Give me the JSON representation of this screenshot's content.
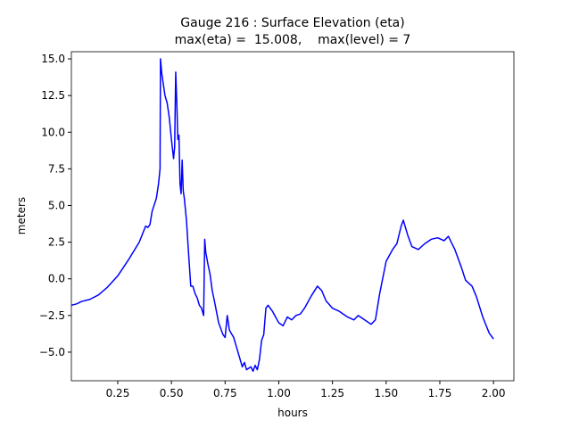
{
  "chart_data": {
    "type": "line",
    "title": "Gauge 216 : Surface Elevation (eta)",
    "subtitle": "max(eta) =  15.008,    max(level) = 7",
    "x_label": "hours",
    "y_label": "meters",
    "x": [
      0.035,
      0.06,
      0.08,
      0.12,
      0.16,
      0.2,
      0.25,
      0.3,
      0.35,
      0.38,
      0.39,
      0.4,
      0.41,
      0.43,
      0.44,
      0.447,
      0.449,
      0.455,
      0.46,
      0.47,
      0.48,
      0.49,
      0.5,
      0.51,
      0.515,
      0.52,
      0.525,
      0.53,
      0.535,
      0.54,
      0.545,
      0.55,
      0.555,
      0.56,
      0.57,
      0.58,
      0.59,
      0.6,
      0.61,
      0.62,
      0.63,
      0.64,
      0.65,
      0.655,
      0.66,
      0.67,
      0.68,
      0.69,
      0.7,
      0.72,
      0.74,
      0.75,
      0.76,
      0.77,
      0.79,
      0.8,
      0.82,
      0.83,
      0.84,
      0.85,
      0.87,
      0.88,
      0.89,
      0.9,
      0.91,
      0.92,
      0.93,
      0.94,
      0.95,
      0.97,
      1.0,
      1.02,
      1.04,
      1.06,
      1.08,
      1.1,
      1.12,
      1.15,
      1.18,
      1.2,
      1.22,
      1.25,
      1.28,
      1.32,
      1.35,
      1.37,
      1.4,
      1.43,
      1.45,
      1.47,
      1.5,
      1.53,
      1.55,
      1.57,
      1.58,
      1.6,
      1.62,
      1.65,
      1.68,
      1.71,
      1.74,
      1.77,
      1.79,
      1.82,
      1.85,
      1.87,
      1.9,
      1.92,
      1.95,
      1.98,
      2.0
    ],
    "series": [
      {
        "name": "eta",
        "color": "#0000ff",
        "values": [
          -1.8,
          -1.7,
          -1.55,
          -1.4,
          -1.1,
          -0.6,
          0.2,
          1.3,
          2.5,
          3.6,
          3.5,
          3.7,
          4.6,
          5.5,
          6.5,
          7.5,
          15.0,
          14.0,
          13.5,
          12.5,
          12.0,
          11.0,
          9.5,
          8.2,
          9.0,
          14.1,
          12,
          9.5,
          9.8,
          6.5,
          5.8,
          8.1,
          6,
          5.5,
          4,
          1.7,
          -0.5,
          -0.5,
          -1.0,
          -1.3,
          -1.8,
          -2.0,
          -2.5,
          2.7,
          1.8,
          1.0,
          0.3,
          -0.8,
          -1.5,
          -3.0,
          -3.8,
          -4.0,
          -2.5,
          -3.5,
          -4.0,
          -4.5,
          -5.5,
          -6.0,
          -5.7,
          -6.2,
          -6.0,
          -6.3,
          -5.9,
          -6.2,
          -5.5,
          -4.2,
          -3.8,
          -2.0,
          -1.8,
          -2.2,
          -3.0,
          -3.2,
          -2.6,
          -2.8,
          -2.5,
          -2.4,
          -2.0,
          -1.2,
          -0.5,
          -0.8,
          -1.5,
          -2.0,
          -2.2,
          -2.6,
          -2.8,
          -2.5,
          -2.8,
          -3.1,
          -2.8,
          -1.0,
          1.2,
          2.0,
          2.4,
          3.6,
          4.0,
          3.0,
          2.2,
          2.0,
          2.4,
          2.7,
          2.8,
          2.6,
          2.9,
          2.0,
          0.8,
          -0.1,
          -0.5,
          -1.2,
          -2.6,
          -3.7,
          -4.1
        ]
      }
    ],
    "xlim": [
      0.034,
      2.095
    ],
    "ylim": [
      -6.95,
      15.49
    ],
    "xticks": [
      0.25,
      {
        "value": 0.5,
        "label": "0.50"
      },
      0.75,
      {
        "value": 1,
        "label": "1.00"
      },
      1.25,
      {
        "value": 1.5,
        "label": "1.50"
      },
      1.75,
      {
        "value": 2,
        "label": "2.00"
      }
    ],
    "yticks": [
      {
        "value": -5,
        "label": "−5.0"
      },
      {
        "value": -2.5,
        "label": "−2.5"
      },
      {
        "value": 0,
        "label": "0.0"
      },
      2.5,
      {
        "value": 5,
        "label": "5.0"
      },
      7.5,
      {
        "value": 10,
        "label": "10.0"
      },
      12.5,
      {
        "value": 15,
        "label": "15.0"
      }
    ],
    "grid": false
  }
}
